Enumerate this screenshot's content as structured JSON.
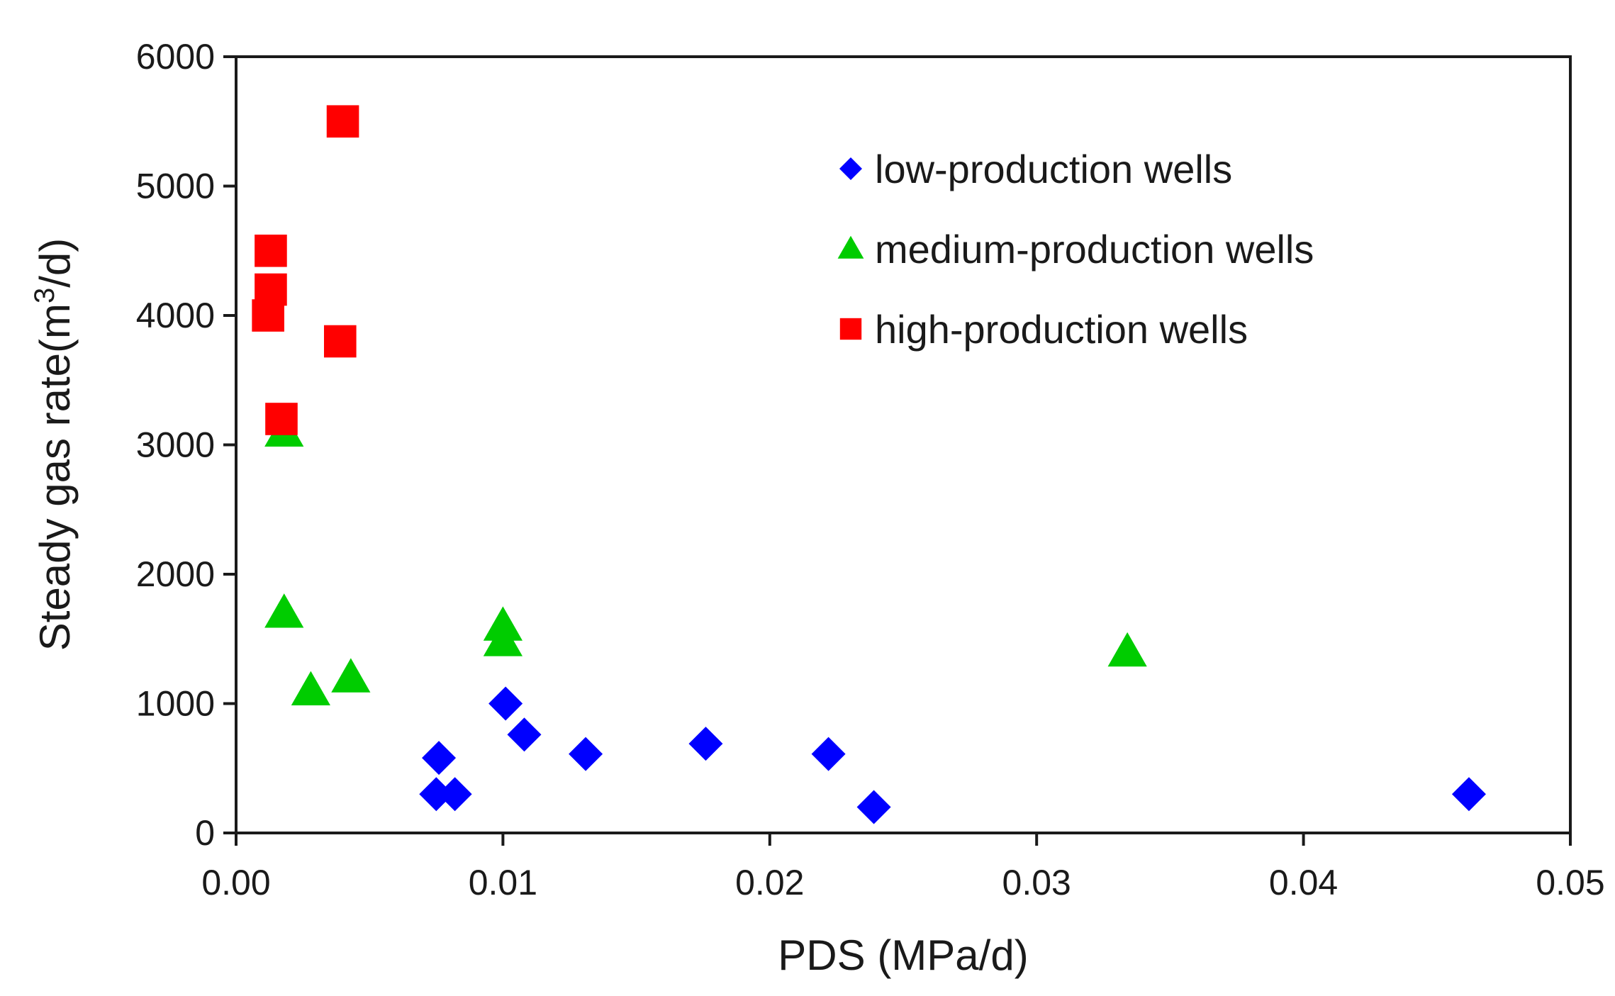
{
  "chart_data": {
    "type": "scatter",
    "title": "",
    "xlabel": "PDS (MPa/d)",
    "ylabel_main": "Steady gas rate(m",
    "ylabel_sup": "3",
    "ylabel_end": "/d)",
    "xlim": [
      0,
      0.05
    ],
    "ylim": [
      0,
      6000
    ],
    "x_ticks": [
      0,
      0.01,
      0.02,
      0.03,
      0.04,
      0.05
    ],
    "x_tick_labels": [
      "0.00",
      "0.01",
      "0.02",
      "0.03",
      "0.04",
      "0.05"
    ],
    "y_ticks": [
      0,
      1000,
      2000,
      3000,
      4000,
      5000,
      6000
    ],
    "y_tick_labels": [
      "0",
      "1000",
      "2000",
      "3000",
      "4000",
      "5000",
      "6000"
    ],
    "grid": false,
    "legend_position": "top-right",
    "series": [
      {
        "name": "low-production wells",
        "marker": "diamond",
        "color": "#0000ff",
        "points": [
          [
            0.0075,
            300
          ],
          [
            0.0076,
            580
          ],
          [
            0.0082,
            300
          ],
          [
            0.0101,
            1000
          ],
          [
            0.0108,
            760
          ],
          [
            0.0131,
            610
          ],
          [
            0.0176,
            690
          ],
          [
            0.0222,
            610
          ],
          [
            0.0239,
            200
          ],
          [
            0.0462,
            300
          ]
        ]
      },
      {
        "name": "medium-production wells",
        "marker": "triangle",
        "color": "#00cc00",
        "points": [
          [
            0.0018,
            3100
          ],
          [
            0.0018,
            1700
          ],
          [
            0.0028,
            1100
          ],
          [
            0.0043,
            1200
          ],
          [
            0.01,
            1480
          ],
          [
            0.01,
            1600
          ],
          [
            0.0334,
            1400
          ]
        ]
      },
      {
        "name": "high-production wells",
        "marker": "square",
        "color": "#ff0000",
        "points": [
          [
            0.004,
            5500
          ],
          [
            0.0013,
            4500
          ],
          [
            0.0013,
            4200
          ],
          [
            0.0012,
            4000
          ],
          [
            0.0039,
            3800
          ],
          [
            0.0017,
            3200
          ]
        ]
      }
    ]
  }
}
